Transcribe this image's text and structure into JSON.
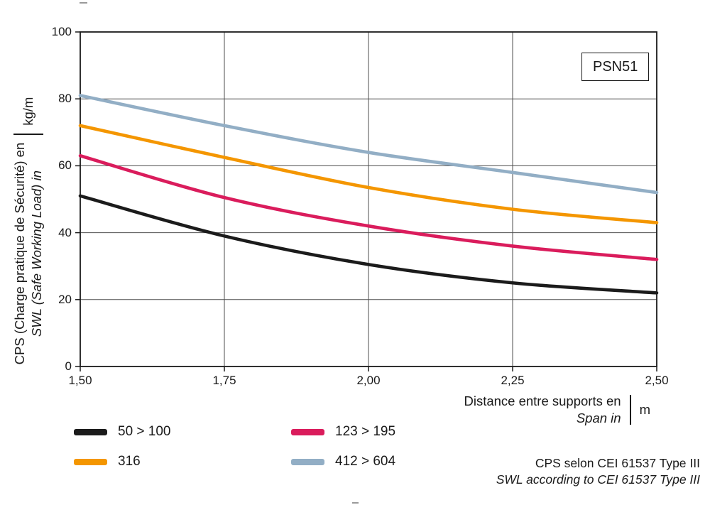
{
  "title_box": "PSN51",
  "axes": {
    "y_label_fr": "CPS (Charge pratique de Sécurité) en",
    "y_label_en": "SWL (Safe Working Load) in",
    "y_unit": "kg/m",
    "x_label_fr": "Distance entre supports en",
    "x_label_en": "Span in",
    "x_unit": "m",
    "y_ticks": [
      "100",
      "80",
      "60",
      "40",
      "20",
      "0"
    ],
    "x_ticks": [
      "1,50",
      "1,75",
      "2,00",
      "2,25",
      "2,50"
    ]
  },
  "legend": [
    {
      "label": "50 > 100",
      "color": "#1b1b1b"
    },
    {
      "label": "123 > 195",
      "color": "#da1c5c"
    },
    {
      "label": "316",
      "color": "#f49600"
    },
    {
      "label": "412 > 604",
      "color": "#92aec5"
    }
  ],
  "footnote_fr": "CPS selon CEI 61537 Type III",
  "footnote_en": "SWL according to CEI 61537 Type III",
  "chart_data": {
    "type": "line",
    "title": "PSN51",
    "xlabel": "Distance entre supports en / Span in (m)",
    "ylabel": "CPS (Charge pratique de Sécurité) en / SWL (Safe Working Load) in (kg/m)",
    "x": [
      1.5,
      1.75,
      2.0,
      2.25,
      2.5
    ],
    "series": [
      {
        "name": "50 > 100",
        "color": "#1b1b1b",
        "values": [
          51,
          39,
          30.5,
          25,
          22
        ]
      },
      {
        "name": "123 > 195",
        "color": "#da1c5c",
        "values": [
          63,
          50.5,
          42,
          36,
          32
        ]
      },
      {
        "name": "316",
        "color": "#f49600",
        "values": [
          72,
          62.5,
          53.5,
          47,
          43
        ]
      },
      {
        "name": "412 > 604",
        "color": "#92aec5",
        "values": [
          81,
          72,
          64,
          58,
          52
        ]
      }
    ],
    "xlim": [
      1.5,
      2.5
    ],
    "ylim": [
      0,
      100
    ],
    "grid": {
      "x_step": 0.25,
      "y_step": 20
    },
    "legend_position": "bottom-left"
  }
}
